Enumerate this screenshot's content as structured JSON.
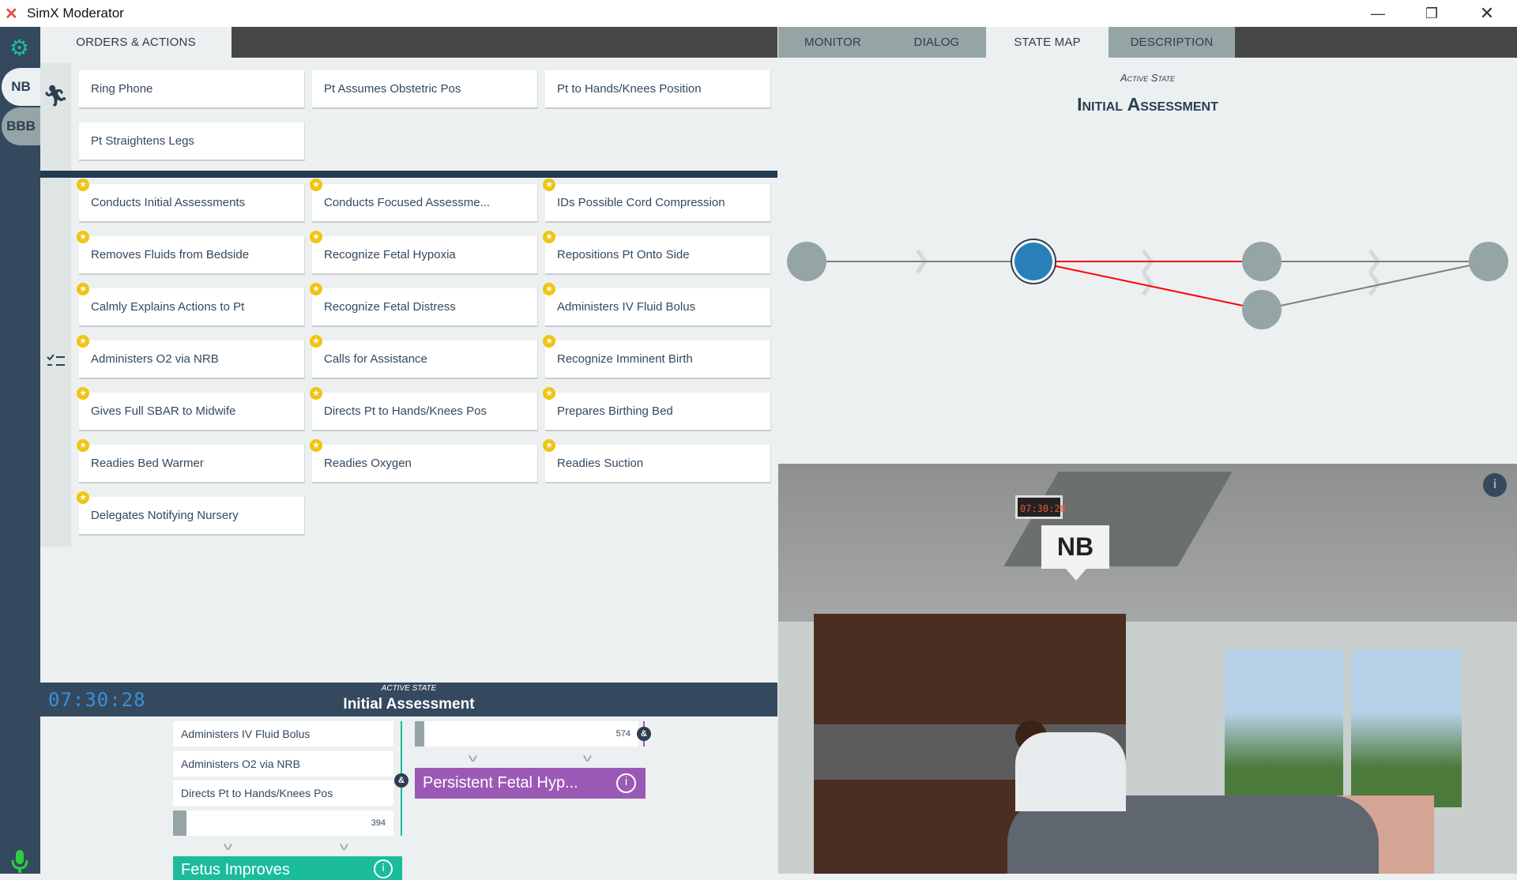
{
  "window": {
    "title": "SimX Moderator",
    "controls": [
      "minimize",
      "restore",
      "close"
    ]
  },
  "sidebar": {
    "patients": [
      {
        "label": "NB",
        "active": true
      },
      {
        "label": "BBB",
        "active": false
      }
    ],
    "icons": [
      "gear-icon",
      "microphone-icon"
    ]
  },
  "left_tabs": [
    {
      "label": "ORDERS & ACTIONS",
      "active": true
    }
  ],
  "actions": [
    "Ring Phone",
    "Pt Assumes Obstetric Pos",
    "Pt to Hands/Knees Position",
    "Pt Straightens Legs"
  ],
  "assessments": [
    "Conducts Initial Assessments",
    "Conducts Focused Assessme...",
    "IDs Possible Cord Compression",
    "Removes Fluids from Bedside",
    "Recognize Fetal Hypoxia",
    "Repositions Pt Onto Side",
    "Calmly Explains Actions to Pt",
    "Recognize Fetal Distress",
    "Administers IV Fluid Bolus",
    "Administers O2 via NRB",
    "Calls for Assistance",
    "Recognize Imminent Birth",
    "Gives Full SBAR to Midwife",
    "Directs Pt to Hands/Knees Pos",
    "Prepares Birthing Bed",
    "Readies Bed Warmer",
    "Readies Oxygen",
    "Readies Suction",
    "Delegates Notifying Nursery"
  ],
  "bottom": {
    "timer": "07:30:28",
    "active_label": "ACTIVE STATE",
    "active_state": "Initial Assessment",
    "left_branch": {
      "items": [
        "Administers IV Fluid Bolus",
        "Administers O2 via NRB",
        "Directs Pt to Hands/Knees Pos"
      ],
      "timer_value": "394",
      "amp": "&",
      "target": "Fetus Improves",
      "color": "#1abc9c"
    },
    "right_branch": {
      "timer_value": "574",
      "amp": "&",
      "target": "Persistent Fetal Hyp...",
      "color": "#9b59b6"
    }
  },
  "right_tabs": [
    {
      "label": "MONITOR",
      "active": false
    },
    {
      "label": "DIALOG",
      "active": false
    },
    {
      "label": "STATE MAP",
      "active": true
    },
    {
      "label": "DESCRIPTION",
      "active": false
    }
  ],
  "state_map": {
    "active_label": "Active State",
    "title": "Initial Assessment",
    "accent": "#2980b9",
    "path_color": "#ff0000"
  },
  "scene": {
    "sign": "NB",
    "clock": "07:30:28"
  }
}
